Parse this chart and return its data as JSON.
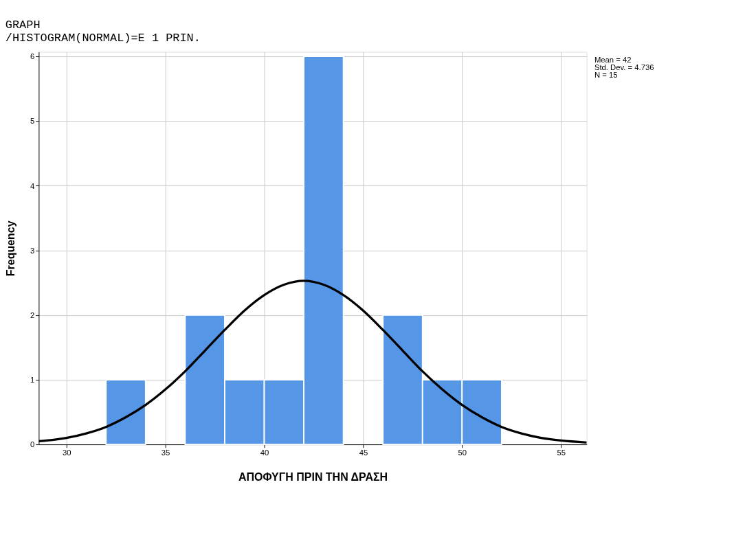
{
  "chart_data": {
    "type": "histogram",
    "title": "GRAPH",
    "subtitle": "  /HISTOGRAM(NORMAL)=E 1 PRIN.",
    "xlabel": "ΑΠΟΦΥΓΗ ΠΡΙΝ ΤΗΝ ΔΡΑΣΗ",
    "ylabel": "Frequency",
    "annotations": [
      "Mean = 42",
      "Std. Dev. = 4.736",
      "N = 15"
    ],
    "series": [
      {
        "type": "histogram",
        "color": "#5596e6",
        "bins": [
          32,
          34,
          36,
          38,
          40,
          42,
          44,
          46,
          48,
          50,
          52
        ],
        "values": [
          1,
          0,
          2,
          1,
          1,
          6,
          0,
          2,
          1,
          1
        ]
      },
      {
        "type": "line",
        "color": "#000000",
        "x": [
          28.6,
          29,
          30,
          31,
          32,
          33,
          34,
          35,
          36,
          37,
          38,
          39,
          40,
          41,
          42,
          43,
          44,
          45,
          46,
          47,
          48,
          49,
          50,
          51,
          52,
          53,
          54,
          55,
          56.3
        ],
        "values": [
          0.05,
          0.06,
          0.1,
          0.17,
          0.27,
          0.42,
          0.61,
          0.85,
          1.13,
          1.45,
          1.77,
          2.07,
          2.31,
          2.47,
          2.53,
          2.47,
          2.31,
          2.07,
          1.77,
          1.45,
          1.13,
          0.85,
          0.61,
          0.42,
          0.27,
          0.17,
          0.1,
          0.06,
          0.03
        ]
      }
    ],
    "xlim": [
      28.6,
      56.3
    ],
    "xticks": [
      30,
      35,
      40,
      45,
      50,
      55
    ],
    "ylim": [
      0,
      6.07
    ],
    "yticks": [
      0,
      1,
      2,
      3,
      4,
      5,
      6
    ],
    "grid": true
  }
}
